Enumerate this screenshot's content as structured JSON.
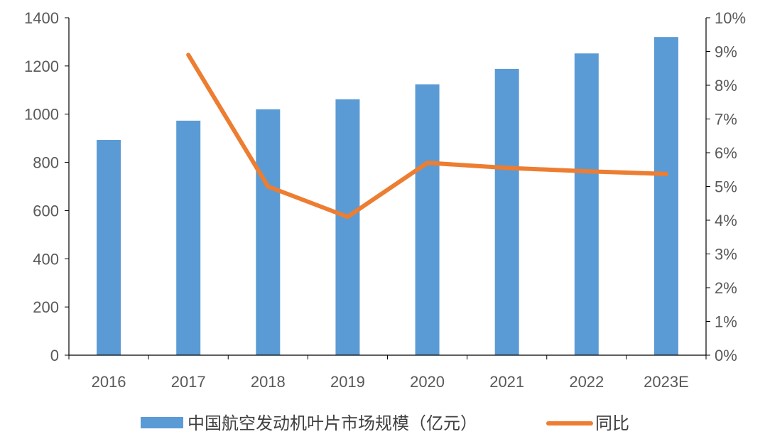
{
  "chart_data": {
    "type": "bar",
    "categories": [
      "2016",
      "2017",
      "2018",
      "2019",
      "2020",
      "2021",
      "2022",
      "2023E"
    ],
    "series": [
      {
        "name": "中国航空发动机叶片市场规模（亿元）",
        "type": "bar",
        "axis": "left",
        "color": "#5b9bd5",
        "values": [
          893,
          973,
          1020,
          1062,
          1124,
          1188,
          1252,
          1320
        ]
      },
      {
        "name": "同比",
        "type": "line",
        "axis": "right",
        "color": "#ed7d31",
        "values": [
          null,
          0.089,
          0.05,
          0.041,
          0.057,
          0.0555,
          0.0545,
          0.0537
        ]
      }
    ],
    "y_left": {
      "min": 0,
      "max": 1400,
      "ticks": [
        0,
        200,
        400,
        600,
        800,
        1000,
        1200,
        1400
      ],
      "tick_labels": [
        "0",
        "200",
        "400",
        "600",
        "800",
        "1000",
        "1200",
        "1400"
      ]
    },
    "y_right": {
      "min": 0,
      "max": 0.1,
      "ticks": [
        0,
        0.01,
        0.02,
        0.03,
        0.04,
        0.05,
        0.06,
        0.07,
        0.08,
        0.09,
        0.1
      ],
      "tick_labels": [
        "0%",
        "1%",
        "2%",
        "3%",
        "4%",
        "5%",
        "6%",
        "7%",
        "8%",
        "9%",
        "10%"
      ]
    },
    "grid": false,
    "legend_position": "bottom",
    "title": "",
    "xlabel": "",
    "ylabel": ""
  }
}
